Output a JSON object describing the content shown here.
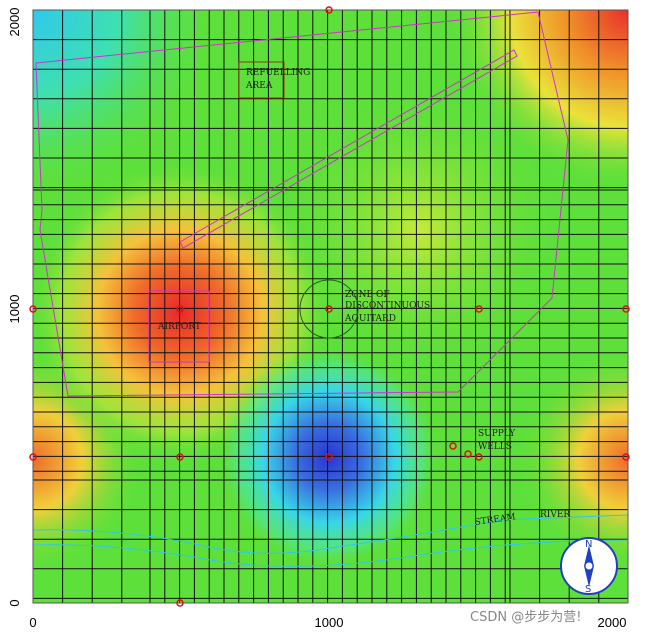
{
  "axes": {
    "x_ticks": [
      "0",
      "1000",
      "2000"
    ],
    "y_ticks": [
      "2000",
      "1000",
      "0"
    ]
  },
  "labels": {
    "refuelling_area": [
      "REFUELLING",
      "AREA"
    ],
    "aquitard": [
      "ZONE OF",
      "DISCONTINUOUS",
      "AQUITARD"
    ],
    "airport": "AIRPORT",
    "supply_wells": [
      "SUPPLY",
      "WELLS"
    ],
    "stream": "STREAM",
    "river": "RIVER"
  },
  "compass": {
    "north": "N",
    "south": "S"
  },
  "watermark": "CSDN @步步为营!"
}
